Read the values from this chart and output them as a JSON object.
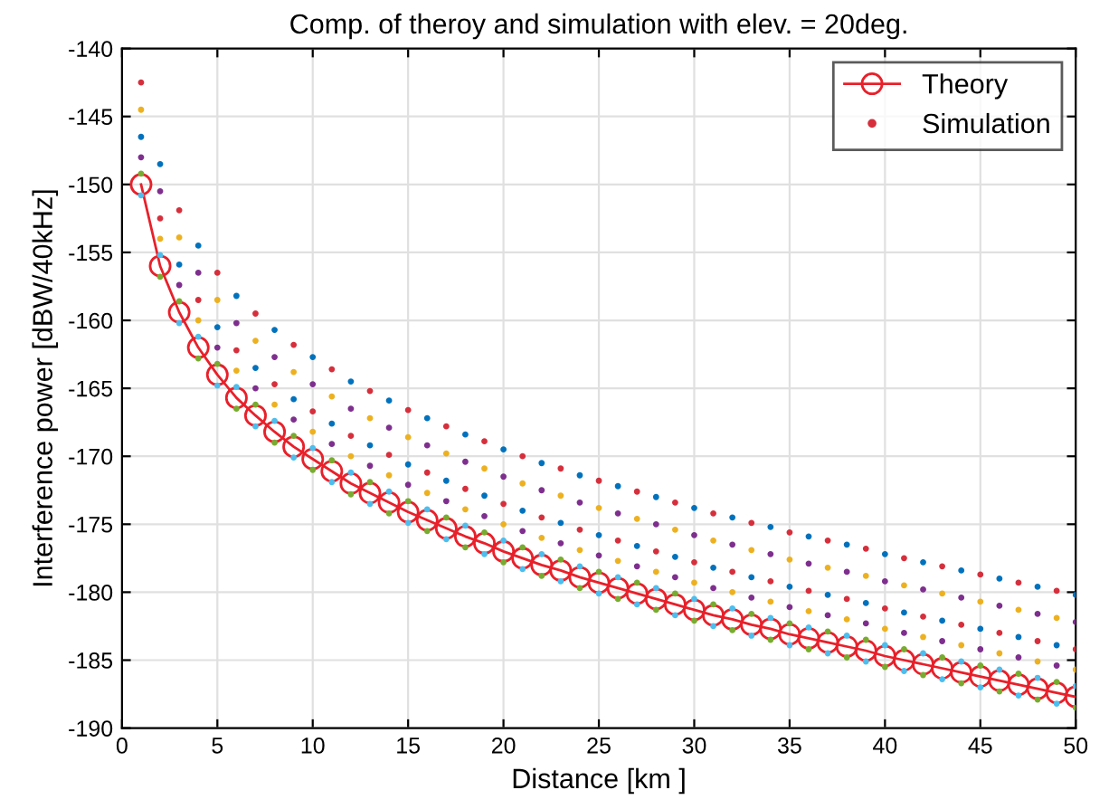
{
  "chart_data": {
    "type": "line",
    "title": "Comp. of theroy and simulation with elev. = 20deg.",
    "xlabel": "Distance [km ]",
    "ylabel": "Interference power [dBW/40kHz]",
    "x": [
      1,
      2,
      3,
      4,
      5,
      6,
      7,
      8,
      9,
      10,
      11,
      12,
      13,
      14,
      15,
      16,
      17,
      18,
      19,
      20,
      21,
      22,
      23,
      24,
      25,
      26,
      27,
      28,
      29,
      30,
      31,
      32,
      33,
      34,
      35,
      36,
      37,
      38,
      39,
      40,
      41,
      42,
      43,
      44,
      45,
      46,
      47,
      48,
      49,
      50
    ],
    "series": [
      {
        "name": "Theory",
        "color": "#e8202a",
        "marker": "circle",
        "line_style": "solid",
        "values": [
          -150,
          -156,
          -159.4,
          -162,
          -164,
          -165.7,
          -167,
          -168.2,
          -169.3,
          -170.2,
          -171.1,
          -172,
          -172.7,
          -173.4,
          -174.1,
          -174.7,
          -175.3,
          -175.9,
          -176.4,
          -177,
          -177.5,
          -178,
          -178.4,
          -178.9,
          -179.3,
          -179.7,
          -180.1,
          -180.5,
          -180.9,
          -181.3,
          -181.7,
          -182,
          -182.4,
          -182.7,
          -183.1,
          -183.4,
          -183.7,
          -184,
          -184.3,
          -184.7,
          -185,
          -185.3,
          -185.6,
          -185.9,
          -186.2,
          -186.5,
          -186.8,
          -187.1,
          -187.4,
          -187.7
        ]
      },
      {
        "name": "Simulation",
        "type": "scatter",
        "color": "#d62f3c",
        "marker": "circle",
        "values": [
          -142.5,
          -152.5,
          -151.9,
          -158.5,
          -156.5,
          -162.2,
          -159.5,
          -164.7,
          -161.8,
          -166.7,
          -163.6,
          -168.5,
          -165.2,
          -169.9,
          -166.6,
          -171.2,
          -167.8,
          -172.4,
          -168.9,
          -173.5,
          -170,
          -174.5,
          -170.9,
          -175.4,
          -171.8,
          -176.2,
          -172.6,
          -177,
          -173.4,
          -177.8,
          -174.2,
          -178.5,
          -174.9,
          -179.2,
          -175.6,
          -179.9,
          -176.2,
          -180.5,
          -176.8,
          -181.2,
          -177.5,
          -181.8,
          -178.1,
          -182.4,
          -178.7,
          -183,
          -179.3,
          -183.6,
          -179.9,
          -184.2
        ]
      },
      {
        "type": "scatter",
        "color": "#0072bd",
        "marker": "circle",
        "values": [
          -146.5,
          -148.5,
          -155.9,
          -154.5,
          -160.5,
          -158.2,
          -163.5,
          -160.7,
          -165.8,
          -162.7,
          -167.6,
          -164.5,
          -169.2,
          -165.9,
          -170.6,
          -167.2,
          -171.8,
          -168.4,
          -172.9,
          -169.5,
          -174,
          -170.5,
          -174.9,
          -171.4,
          -175.8,
          -172.2,
          -176.6,
          -173,
          -177.4,
          -173.8,
          -178.2,
          -174.5,
          -178.9,
          -175.2,
          -179.6,
          -175.9,
          -180.2,
          -176.5,
          -180.8,
          -177.2,
          -181.5,
          -177.8,
          -182.1,
          -178.4,
          -182.7,
          -179,
          -183.3,
          -179.6,
          -183.9,
          -180.2
        ]
      },
      {
        "type": "scatter",
        "color": "#edb120",
        "marker": "circle",
        "values": [
          -144.5,
          -154,
          -153.9,
          -160,
          -158.5,
          -163.7,
          -161.5,
          -166.2,
          -163.8,
          -168.2,
          -165.6,
          -170,
          -167.2,
          -171.4,
          -168.6,
          -172.7,
          -169.8,
          -173.9,
          -170.9,
          -175,
          -172,
          -176,
          -172.9,
          -176.9,
          -173.8,
          -177.7,
          -174.6,
          -178.5,
          -175.4,
          -179.3,
          -176.2,
          -180,
          -176.9,
          -180.7,
          -177.6,
          -181.4,
          -178.2,
          -182,
          -178.8,
          -182.7,
          -179.5,
          -183.3,
          -180.1,
          -183.9,
          -180.7,
          -184.5,
          -181.3,
          -185.1,
          -181.9,
          -185.7
        ]
      },
      {
        "type": "scatter",
        "color": "#7e2f8e",
        "marker": "circle",
        "values": [
          -148,
          -150.5,
          -157.4,
          -156.5,
          -162,
          -160.2,
          -165,
          -162.7,
          -167.3,
          -164.7,
          -169.1,
          -166.5,
          -170.7,
          -167.9,
          -172.1,
          -169.2,
          -173.3,
          -170.4,
          -174.4,
          -171.5,
          -175.5,
          -172.5,
          -176.4,
          -173.4,
          -177.3,
          -174.2,
          -178.1,
          -175,
          -178.9,
          -175.8,
          -179.7,
          -176.5,
          -180.4,
          -177.2,
          -181.1,
          -177.9,
          -181.7,
          -178.5,
          -182.3,
          -179.2,
          -183,
          -179.8,
          -183.6,
          -180.4,
          -184.2,
          -181,
          -184.8,
          -181.6,
          -185.4,
          -182.2
        ]
      },
      {
        "type": "scatter",
        "color": "#77ac30",
        "marker": "circle",
        "values": [
          -149.2,
          -156.8,
          -158.6,
          -162.8,
          -163.2,
          -166.5,
          -166.2,
          -169,
          -168.5,
          -171,
          -170.3,
          -172.8,
          -171.9,
          -174.2,
          -173.3,
          -175.5,
          -174.5,
          -176.7,
          -175.6,
          -177.8,
          -176.7,
          -178.8,
          -177.6,
          -179.7,
          -178.5,
          -180.5,
          -179.3,
          -181.3,
          -180.1,
          -182.1,
          -180.9,
          -182.8,
          -181.6,
          -183.5,
          -182.3,
          -184.2,
          -182.9,
          -184.8,
          -183.5,
          -185.5,
          -184.2,
          -186.1,
          -184.8,
          -186.7,
          -185.4,
          -187.3,
          -186,
          -187.9,
          -186.6,
          -188.5
        ]
      },
      {
        "type": "scatter",
        "color": "#4dbeee",
        "marker": "circle",
        "values": [
          -150.8,
          -155.2,
          -160.2,
          -161.2,
          -164.8,
          -164.9,
          -167.8,
          -167.4,
          -170.1,
          -169.4,
          -171.9,
          -171.2,
          -173.5,
          -172.6,
          -174.9,
          -173.9,
          -176.1,
          -175.1,
          -177.2,
          -176.2,
          -178.3,
          -177.2,
          -179.2,
          -178.1,
          -180.1,
          -178.9,
          -180.9,
          -179.7,
          -181.7,
          -180.5,
          -182.5,
          -181.2,
          -183.2,
          -181.9,
          -183.9,
          -182.6,
          -184.5,
          -183.2,
          -185.1,
          -183.9,
          -185.8,
          -184.5,
          -186.4,
          -185.1,
          -187,
          -185.7,
          -187.6,
          -186.3,
          -188.2,
          -186.9
        ]
      }
    ],
    "xlim": [
      0,
      50
    ],
    "xticks": [
      0,
      5,
      10,
      15,
      20,
      25,
      30,
      35,
      40,
      45,
      50
    ],
    "ylim": [
      -190,
      -140
    ],
    "yticks": [
      -190,
      -185,
      -180,
      -175,
      -170,
      -165,
      -160,
      -155,
      -150,
      -145,
      -140
    ],
    "grid": true,
    "legend": "top right"
  }
}
